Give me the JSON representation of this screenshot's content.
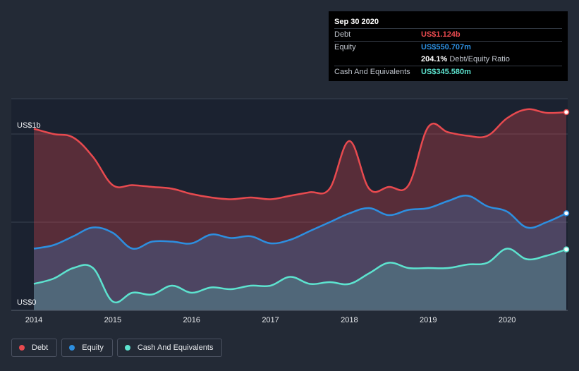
{
  "chart_data": {
    "type": "area",
    "x_range": [
      2014.0,
      2020.75
    ],
    "ylim": [
      0,
      1.2
    ],
    "y_unit": "US$ billions",
    "ytick_labels": {
      "top": "US$1b",
      "bottom": "US$0"
    },
    "xtick_labels": [
      "2014",
      "2015",
      "2016",
      "2017",
      "2018",
      "2019",
      "2020"
    ],
    "xtick_values": [
      2014,
      2015,
      2016,
      2017,
      2018,
      2019,
      2020
    ],
    "series": [
      {
        "name": "Debt",
        "color": "#e84a4f",
        "x": [
          2014.0,
          2014.25,
          2014.5,
          2014.75,
          2015.0,
          2015.25,
          2015.5,
          2015.75,
          2016.0,
          2016.25,
          2016.5,
          2016.75,
          2017.0,
          2017.25,
          2017.5,
          2017.75,
          2018.0,
          2018.25,
          2018.5,
          2018.75,
          2019.0,
          2019.25,
          2019.5,
          2019.75,
          2020.0,
          2020.25,
          2020.5,
          2020.75
        ],
        "values": [
          1.03,
          1.0,
          0.98,
          0.87,
          0.71,
          0.71,
          0.7,
          0.69,
          0.66,
          0.64,
          0.63,
          0.64,
          0.63,
          0.65,
          0.67,
          0.69,
          0.96,
          0.69,
          0.7,
          0.71,
          1.04,
          1.01,
          0.99,
          0.99,
          1.09,
          1.14,
          1.12,
          1.124
        ]
      },
      {
        "name": "Equity",
        "color": "#2d8fe0",
        "x": [
          2014.0,
          2014.25,
          2014.5,
          2014.75,
          2015.0,
          2015.25,
          2015.5,
          2015.75,
          2016.0,
          2016.25,
          2016.5,
          2016.75,
          2017.0,
          2017.25,
          2017.5,
          2017.75,
          2018.0,
          2018.25,
          2018.5,
          2018.75,
          2019.0,
          2019.25,
          2019.5,
          2019.75,
          2020.0,
          2020.25,
          2020.5,
          2020.75
        ],
        "values": [
          0.35,
          0.37,
          0.42,
          0.47,
          0.44,
          0.35,
          0.39,
          0.39,
          0.38,
          0.43,
          0.41,
          0.42,
          0.38,
          0.4,
          0.45,
          0.5,
          0.55,
          0.58,
          0.54,
          0.57,
          0.58,
          0.62,
          0.65,
          0.59,
          0.56,
          0.47,
          0.5,
          0.5507
        ]
      },
      {
        "name": "Cash And Equivalents",
        "color": "#5de3cf",
        "x": [
          2014.0,
          2014.25,
          2014.5,
          2014.75,
          2015.0,
          2015.25,
          2015.5,
          2015.75,
          2016.0,
          2016.25,
          2016.5,
          2016.75,
          2017.0,
          2017.25,
          2017.5,
          2017.75,
          2018.0,
          2018.25,
          2018.5,
          2018.75,
          2019.0,
          2019.25,
          2019.5,
          2019.75,
          2020.0,
          2020.25,
          2020.5,
          2020.75
        ],
        "values": [
          0.15,
          0.18,
          0.24,
          0.24,
          0.05,
          0.1,
          0.09,
          0.14,
          0.1,
          0.13,
          0.12,
          0.14,
          0.14,
          0.19,
          0.15,
          0.16,
          0.15,
          0.21,
          0.27,
          0.24,
          0.24,
          0.24,
          0.26,
          0.27,
          0.35,
          0.29,
          0.31,
          0.3456
        ]
      }
    ],
    "tooltip": {
      "date": "Sep 30 2020",
      "debt_label": "Debt",
      "debt_value": "US$1.124b",
      "equity_label": "Equity",
      "equity_value": "US$550.707m",
      "ratio_value": "204.1%",
      "ratio_label": "Debt/Equity Ratio",
      "cash_label": "Cash And Equivalents",
      "cash_value": "US$345.580m"
    },
    "legend": [
      "Debt",
      "Equity",
      "Cash And Equivalents"
    ]
  },
  "colors": {
    "debt": "#e84a4f",
    "equity": "#2d8fe0",
    "cash": "#5de3cf"
  }
}
